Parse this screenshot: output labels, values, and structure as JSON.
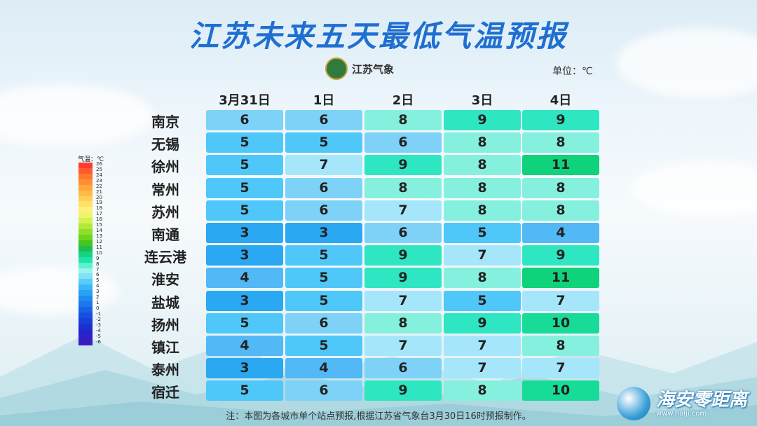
{
  "title": "江苏未来五天最低气温预报",
  "logo_text": "江苏气象",
  "unit_label": "单位：℃",
  "days": [
    "3月31日",
    "1日",
    "2日",
    "3日",
    "4日"
  ],
  "rows": [
    {
      "city": "南京",
      "values": [
        6,
        6,
        8,
        9,
        9
      ]
    },
    {
      "city": "无锡",
      "values": [
        5,
        5,
        6,
        8,
        8
      ]
    },
    {
      "city": "徐州",
      "values": [
        5,
        7,
        9,
        8,
        11
      ]
    },
    {
      "city": "常州",
      "values": [
        5,
        6,
        8,
        8,
        8
      ]
    },
    {
      "city": "苏州",
      "values": [
        5,
        6,
        7,
        8,
        8
      ]
    },
    {
      "city": "南通",
      "values": [
        3,
        3,
        6,
        5,
        4
      ]
    },
    {
      "city": "连云港",
      "values": [
        3,
        5,
        9,
        7,
        9
      ]
    },
    {
      "city": "淮安",
      "values": [
        4,
        5,
        9,
        8,
        11
      ]
    },
    {
      "city": "盐城",
      "values": [
        3,
        5,
        7,
        5,
        7
      ]
    },
    {
      "city": "扬州",
      "values": [
        5,
        6,
        8,
        9,
        10
      ]
    },
    {
      "city": "镇江",
      "values": [
        4,
        5,
        7,
        7,
        8
      ]
    },
    {
      "city": "泰州",
      "values": [
        3,
        4,
        6,
        7,
        7
      ]
    },
    {
      "city": "宿迁",
      "values": [
        5,
        6,
        9,
        8,
        10
      ]
    }
  ],
  "legend": {
    "title": "气温：℃",
    "levels": [
      {
        "label": "26",
        "color": "#ff3b2f"
      },
      {
        "label": "25",
        "color": "#ff5a2e"
      },
      {
        "label": "24",
        "color": "#ff772f"
      },
      {
        "label": "23",
        "color": "#ff8f34"
      },
      {
        "label": "22",
        "color": "#ffa63c"
      },
      {
        "label": "21",
        "color": "#ffbb48"
      },
      {
        "label": "20",
        "color": "#ffd055"
      },
      {
        "label": "19",
        "color": "#ffe168"
      },
      {
        "label": "18",
        "color": "#fff07a"
      },
      {
        "label": "17",
        "color": "#eef56a"
      },
      {
        "label": "16",
        "color": "#d2f24f"
      },
      {
        "label": "15",
        "color": "#b1ea37"
      },
      {
        "label": "14",
        "color": "#8ee028"
      },
      {
        "label": "13",
        "color": "#6bd41f"
      },
      {
        "label": "12",
        "color": "#45c51e"
      },
      {
        "label": "11",
        "color": "#1fbe4f"
      },
      {
        "label": "10",
        "color": "#18d37e"
      },
      {
        "label": "9",
        "color": "#1ee4a8"
      },
      {
        "label": "8",
        "color": "#5ef0cf"
      },
      {
        "label": "7",
        "color": "#98f4ea"
      },
      {
        "label": "6",
        "color": "#7fe0f8"
      },
      {
        "label": "5",
        "color": "#58cdf9"
      },
      {
        "label": "4",
        "color": "#3cb6f7"
      },
      {
        "label": "3",
        "color": "#2aa2f4"
      },
      {
        "label": "2",
        "color": "#1e8cf0"
      },
      {
        "label": "1",
        "color": "#1a77ec"
      },
      {
        "label": "0",
        "color": "#1762e6"
      },
      {
        "label": "-1",
        "color": "#164fe0"
      },
      {
        "label": "-2",
        "color": "#173fd9"
      },
      {
        "label": "-3",
        "color": "#1c30d2"
      },
      {
        "label": "-4",
        "color": "#2424cb"
      },
      {
        "label": "-5",
        "color": "#3020c4"
      },
      {
        "label": "-6",
        "color": "#3b1dbd"
      }
    ]
  },
  "cell_colors": {
    "3": "#2aa8f2",
    "4": "#52b8f6",
    "5": "#4fc8f9",
    "6": "#7fd2f7",
    "7": "#a6e6fb",
    "8": "#86f0de",
    "9": "#2ee6c2",
    "10": "#17dc98",
    "11": "#0fd27a"
  },
  "note": "注：本图为各城市单个站点预报,根据江苏省气象台3月30日16时预报制作。",
  "brand": {
    "name": "海安零距离",
    "url": "www.halji.com"
  }
}
